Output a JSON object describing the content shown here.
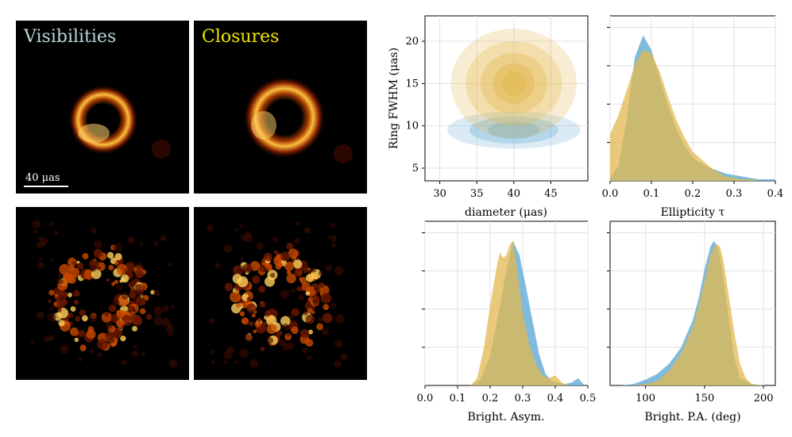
{
  "panels": {
    "left_title": "Visibilities",
    "right_title": "Closures",
    "left_title_color": "#b9d6dc",
    "right_title_color": "#f2e600",
    "scalebar_label": "40 μas"
  },
  "colors": {
    "blue": "#6aaed6",
    "gold": "#e3b84e",
    "overlap": "#b3a652"
  },
  "chart_data": [
    {
      "type": "contour",
      "name": "diameter-vs-fwhm",
      "xlabel": "diameter (μas)",
      "ylabel": "Ring FWHM (μas)",
      "xlim": [
        28,
        50
      ],
      "ylim": [
        3.5,
        23
      ],
      "xticks": [
        30,
        35,
        40,
        45
      ],
      "yticks": [
        5,
        10,
        15,
        20
      ],
      "series": [
        {
          "name": "Visibilities",
          "center": [
            40,
            9.5
          ]
        },
        {
          "name": "Closures",
          "center": [
            40,
            15
          ]
        }
      ]
    },
    {
      "type": "area",
      "name": "ellipticity",
      "xlabel": "Ellipticity τ",
      "xlim": [
        0,
        0.4
      ],
      "xticks": [
        0.0,
        0.1,
        0.2,
        0.3,
        0.4
      ],
      "ylim": [
        0,
        1.1
      ],
      "series": [
        {
          "name": "Visibilities",
          "x": [
            0,
            0.02,
            0.04,
            0.06,
            0.08,
            0.1,
            0.12,
            0.14,
            0.16,
            0.18,
            0.2,
            0.22,
            0.24,
            0.26,
            0.28,
            0.3,
            0.32,
            0.34,
            0.36,
            0.38,
            0.4
          ],
          "y": [
            0.02,
            0.1,
            0.42,
            0.85,
            1.0,
            0.9,
            0.7,
            0.52,
            0.36,
            0.24,
            0.16,
            0.12,
            0.09,
            0.07,
            0.05,
            0.04,
            0.03,
            0.02,
            0.01,
            0.01,
            0.01
          ]
        },
        {
          "name": "Closures",
          "x": [
            0,
            0.02,
            0.04,
            0.06,
            0.08,
            0.1,
            0.12,
            0.14,
            0.16,
            0.18,
            0.2,
            0.22,
            0.24,
            0.26,
            0.28,
            0.3,
            0.32,
            0.34,
            0.36,
            0.38,
            0.4
          ],
          "y": [
            0.32,
            0.45,
            0.62,
            0.8,
            0.9,
            0.88,
            0.75,
            0.58,
            0.42,
            0.3,
            0.2,
            0.15,
            0.1,
            0.06,
            0.03,
            0.02,
            0.01,
            0.01,
            0.0,
            0.0,
            0.0
          ]
        }
      ]
    },
    {
      "type": "area",
      "name": "brightness-asymmetry",
      "xlabel": "Bright. Asym.",
      "xlim": [
        0,
        0.5
      ],
      "xticks": [
        0.0,
        0.1,
        0.2,
        0.3,
        0.4,
        0.5
      ],
      "ylim": [
        0,
        1.1
      ],
      "series": [
        {
          "name": "Visibilities",
          "x": [
            0.14,
            0.17,
            0.2,
            0.23,
            0.25,
            0.27,
            0.29,
            0.31,
            0.33,
            0.35,
            0.37,
            0.39,
            0.41,
            0.43,
            0.45,
            0.47,
            0.49
          ],
          "y": [
            0,
            0.04,
            0.2,
            0.55,
            0.8,
            1.0,
            0.9,
            0.68,
            0.45,
            0.22,
            0.08,
            0.03,
            0.02,
            0.01,
            0.02,
            0.05,
            0.0
          ]
        },
        {
          "name": "Closures",
          "x": [
            0.14,
            0.16,
            0.18,
            0.2,
            0.22,
            0.23,
            0.24,
            0.25,
            0.26,
            0.27,
            0.28,
            0.3,
            0.32,
            0.34,
            0.36,
            0.38,
            0.4,
            0.42,
            0.44
          ],
          "y": [
            0,
            0.05,
            0.25,
            0.55,
            0.82,
            0.92,
            0.88,
            0.9,
            0.97,
            1.0,
            0.85,
            0.5,
            0.28,
            0.15,
            0.07,
            0.05,
            0.07,
            0.02,
            0.0
          ]
        }
      ]
    },
    {
      "type": "area",
      "name": "brightness-position-angle",
      "xlabel": "Bright. P.A. (deg)",
      "xlim": [
        70,
        210
      ],
      "xticks": [
        100,
        150,
        200
      ],
      "ylim": [
        0,
        1.1
      ],
      "series": [
        {
          "name": "Visibilities",
          "x": [
            80,
            90,
            100,
            110,
            120,
            130,
            140,
            145,
            150,
            155,
            158,
            162,
            165,
            170,
            175,
            180,
            190,
            200
          ],
          "y": [
            0,
            0.01,
            0.04,
            0.08,
            0.15,
            0.26,
            0.45,
            0.6,
            0.8,
            0.96,
            1.0,
            0.94,
            0.8,
            0.5,
            0.2,
            0.05,
            0.01,
            0
          ]
        },
        {
          "name": "Closures",
          "x": [
            90,
            100,
            110,
            120,
            130,
            140,
            145,
            150,
            155,
            160,
            163,
            166,
            170,
            175,
            180,
            185,
            190,
            200
          ],
          "y": [
            0,
            0.01,
            0.03,
            0.1,
            0.22,
            0.4,
            0.55,
            0.72,
            0.9,
            0.98,
            0.96,
            0.86,
            0.65,
            0.38,
            0.15,
            0.05,
            0.01,
            0
          ]
        }
      ]
    }
  ]
}
